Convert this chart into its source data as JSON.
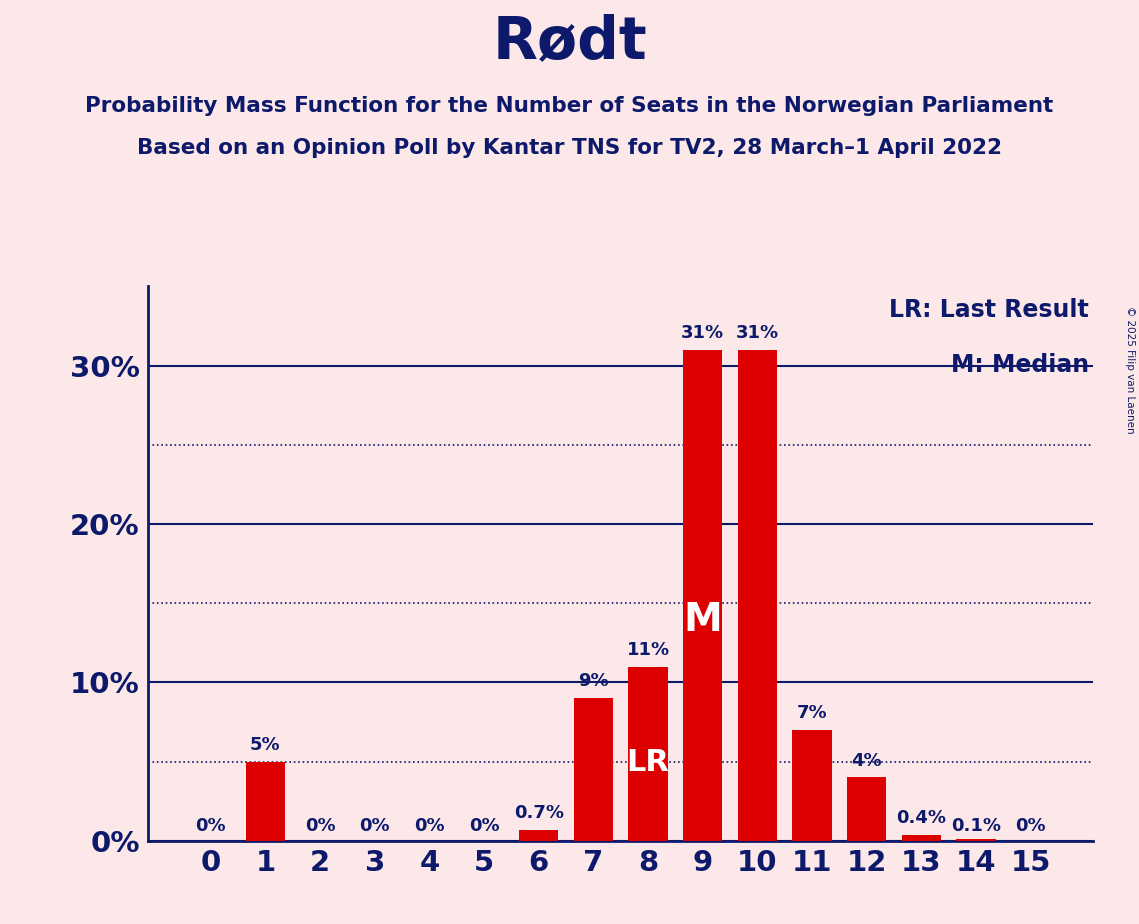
{
  "title": "Rødt",
  "subtitle_line1": "Probability Mass Function for the Number of Seats in the Norwegian Parliament",
  "subtitle_line2": "Based on an Opinion Poll by Kantar TNS for TV2, 28 March–1 April 2022",
  "copyright": "© 2025 Filip van Laenen",
  "categories": [
    0,
    1,
    2,
    3,
    4,
    5,
    6,
    7,
    8,
    9,
    10,
    11,
    12,
    13,
    14,
    15
  ],
  "values": [
    0.0,
    5.0,
    0.0,
    0.0,
    0.0,
    0.0,
    0.7,
    9.0,
    11.0,
    31.0,
    31.0,
    7.0,
    4.0,
    0.4,
    0.1,
    0.0
  ],
  "bar_color": "#dd0000",
  "background_color": "#fce8e8",
  "text_color": "#0d1a6b",
  "title_color": "#0d1a6b",
  "bar_labels": [
    "0%",
    "5%",
    "0%",
    "0%",
    "0%",
    "0%",
    "0.7%",
    "9%",
    "11%",
    "31%",
    "31%",
    "7%",
    "4%",
    "0.4%",
    "0.1%",
    "0%"
  ],
  "lr_bar_idx": 8,
  "median_bar_idx": 9,
  "legend_lr": "LR: Last Result",
  "legend_m": "M: Median",
  "ylim": [
    0,
    35
  ],
  "yticks": [
    0,
    10,
    20,
    30
  ],
  "ytick_labels": [
    "0%",
    "10%",
    "20%",
    "30%"
  ],
  "dotted_lines": [
    5,
    15,
    25
  ],
  "solid_lines": [
    0,
    10,
    20,
    30
  ]
}
